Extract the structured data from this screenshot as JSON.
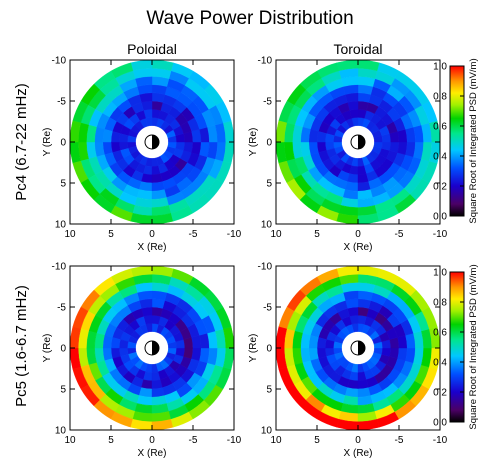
{
  "chart_data": {
    "type": "heatmap",
    "title": "Wave Power Distribution",
    "columns": [
      "Poloidal",
      "Toroidal"
    ],
    "rows": [
      "Pc4 (6.7-22 mHz)",
      "Pc5 (1.6-6.7 mHz)"
    ],
    "xlabel": "X (Re)",
    "ylabel": "Y (Re)",
    "xlim": [
      10,
      -10
    ],
    "ylim": [
      -10,
      10
    ],
    "x_ticks": [
      "10",
      "5",
      "0",
      "-5",
      "-10"
    ],
    "y_ticks": [
      "-10",
      "-5",
      "0",
      "5",
      "10"
    ],
    "colorbar": {
      "label": "Square Root of Integrated PSD  (mV/m)",
      "range": [
        0.0,
        1.0
      ],
      "ticks": [
        "0.0",
        "0.2",
        "0.4",
        "0.6",
        "0.8",
        "1.0"
      ],
      "colormap": "rainbow (black-purple-blue-cyan-green-yellow-orange-red)"
    },
    "grid": "polar, radius 2–10 Re, 1 Re radial bins × 24 MLT sectors, earth symbol at center",
    "panels": [
      {
        "row": 0,
        "column": 0,
        "name": "Pc4 Poloidal",
        "radial_profile": [
          0.28,
          0.25,
          0.22,
          0.28,
          0.34,
          0.42,
          0.5,
          0.56
        ],
        "noon_boost": 0.12,
        "dawn_boost": 0.05
      },
      {
        "row": 0,
        "column": 1,
        "name": "Pc4 Toroidal",
        "radial_profile": [
          0.28,
          0.25,
          0.22,
          0.28,
          0.36,
          0.44,
          0.52,
          0.58
        ],
        "noon_boost": 0.1,
        "dawn_boost": 0.06
      },
      {
        "row": 1,
        "column": 0,
        "name": "Pc5 Poloidal",
        "radial_profile": [
          0.3,
          0.24,
          0.2,
          0.3,
          0.4,
          0.52,
          0.66,
          0.8
        ],
        "noon_boost": 0.18,
        "dawn_boost": 0.06
      },
      {
        "row": 1,
        "column": 1,
        "name": "Pc5 Toroidal",
        "radial_profile": [
          0.3,
          0.24,
          0.2,
          0.3,
          0.4,
          0.54,
          0.72,
          0.9
        ],
        "noon_boost": 0.12,
        "dawn_boost": 0.1
      }
    ]
  }
}
